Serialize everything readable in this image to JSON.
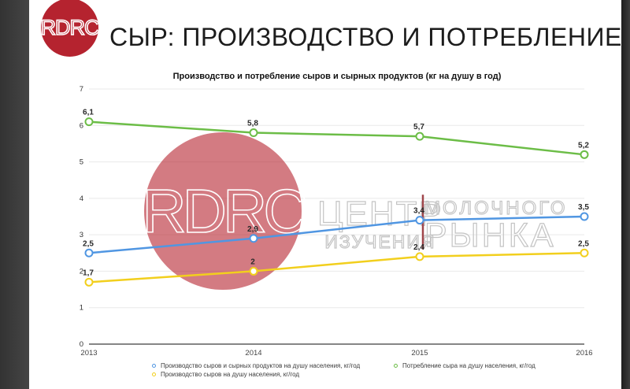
{
  "logo": {
    "text": "RDRC",
    "color": "#b5232f"
  },
  "slide": {
    "title": "СЫР: ПРОИЗВОДСТВО И ПОТРЕБЛЕНИЕ"
  },
  "watermark": {
    "logo_text": "RDRC",
    "circle_color": "rgba(181,35,47,0.60)",
    "center_big": "ЦЕНТР",
    "center_small": "ИЗУЧЕНИЯ",
    "right_small": "МОЛОЧНОГО",
    "right_big": "РЫНКА"
  },
  "chart_data": {
    "type": "line",
    "title": "Производство и потребление сыров и сырных продуктов (кг на душу в год)",
    "categories": [
      "2013",
      "2014",
      "2015",
      "2016"
    ],
    "series": [
      {
        "name": "Производство сыров и сырных продуктов на душу населения, кг/год",
        "color": "#5096e2",
        "values": [
          2.5,
          2.9,
          3.4,
          3.5
        ],
        "point_labels": [
          "2,5",
          "2,9",
          "3,4",
          "3,5"
        ]
      },
      {
        "name": "Производство сыров на душу населения, кг/год",
        "color": "#f2cf1d",
        "values": [
          1.7,
          2,
          2.4,
          2.5
        ],
        "point_labels": [
          "1,7",
          "2",
          "2,4",
          "2,5"
        ]
      },
      {
        "name": "Потребление сыра на душу населения, кг/год",
        "color": "#6cbd47",
        "values": [
          6.1,
          5.8,
          5.7,
          5.2
        ],
        "point_labels": [
          "6,1",
          "5,8",
          "5,7",
          "5,2"
        ]
      }
    ],
    "ylim": [
      0,
      7
    ],
    "yticks": [
      "0",
      "1",
      "2",
      "3",
      "4",
      "5",
      "6",
      "7"
    ],
    "grid": true,
    "legend_position": "bottom",
    "annotation_line": {
      "at_category": "2015",
      "from_value": 2.6,
      "to_value": 4.1,
      "color": "#a0464b"
    }
  }
}
